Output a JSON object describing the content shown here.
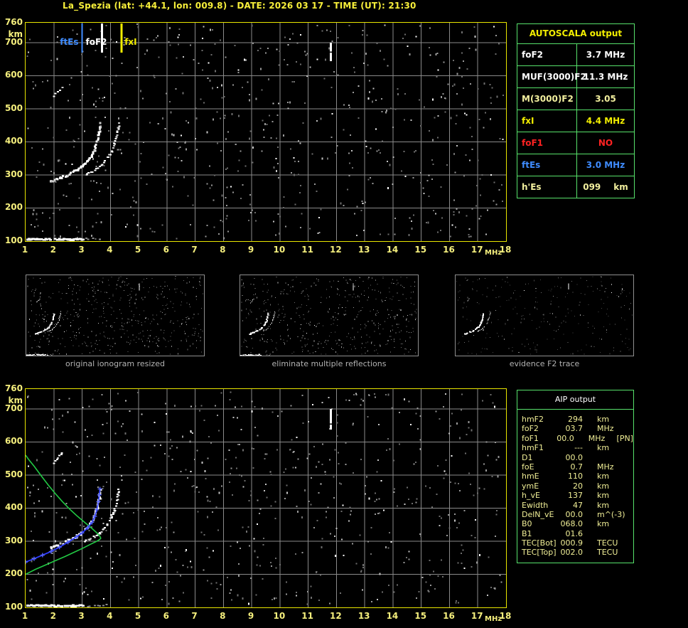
{
  "title": "La_Spezia (lat: +44.1, lon: 009.8) - DATE: 2026 03 17 - TIME (UT): 21:30",
  "colors": {
    "background": "#000000",
    "frame_yellow": "#e9e600",
    "axis_label_yellow": "#f5ef7d",
    "grid_gray": "#8a8a8a",
    "table_border_green": "#57e26b",
    "title_yellow": "#f7ef3a",
    "white": "#ffffff",
    "red": "#ff2222",
    "blue": "#3f8cff",
    "pale_yellow": "#f2ef9e",
    "bright_yellow": "#f2ee00",
    "profile_green": "#22c944",
    "profile_blue": "#2e3cff",
    "caption_gray": "#b3b3b3"
  },
  "autoscala_table": {
    "header": "AUTOSCALA output",
    "rows": [
      {
        "label": "foF2",
        "value": "3.7 MHz",
        "color": "#ffffff"
      },
      {
        "label": "MUF(3000)F2",
        "value": "11.3 MHz",
        "color": "#ffffff"
      },
      {
        "label": "M(3000)F2",
        "value": "3.05",
        "color": "#f2ef9e"
      },
      {
        "label": "fxI",
        "value": "4.4 MHz",
        "color": "#f2ee00"
      },
      {
        "label": "foF1",
        "value": "NO",
        "color": "#ff2222"
      },
      {
        "label": "ftEs",
        "value": "3.0 MHz",
        "color": "#3f8cff"
      },
      {
        "label": "h'Es",
        "value": "099",
        "value_unit": "km",
        "color": "#f2ef9e"
      }
    ]
  },
  "aip_table": {
    "header": "AIP output",
    "rows": [
      {
        "name": "hmF2",
        "value": "294",
        "unit": "km",
        "extra": ""
      },
      {
        "name": "foF2",
        "value": "03.7",
        "unit": "MHz",
        "extra": ""
      },
      {
        "name": "foF1",
        "value": "00.0",
        "unit": "MHz",
        "extra": "[PN]"
      },
      {
        "name": "hmF1",
        "value": "---",
        "unit": "km",
        "extra": ""
      },
      {
        "name": "D1",
        "value": "00.0",
        "unit": "",
        "extra": ""
      },
      {
        "name": "foE",
        "value": "0.7",
        "unit": "MHz",
        "extra": ""
      },
      {
        "name": "hmE",
        "value": "110",
        "unit": "km",
        "extra": ""
      },
      {
        "name": "ymE",
        "value": "20",
        "unit": "km",
        "extra": ""
      },
      {
        "name": "h_vE",
        "value": "137",
        "unit": "km",
        "extra": ""
      },
      {
        "name": "Ewidth",
        "value": "47",
        "unit": "km",
        "extra": ""
      },
      {
        "name": "DelN_vE",
        "value": "00.0",
        "unit": "m^(-3)",
        "extra": ""
      },
      {
        "name": "B0",
        "value": "068.0",
        "unit": "km",
        "extra": ""
      },
      {
        "name": "B1",
        "value": "01.6",
        "unit": "",
        "extra": ""
      },
      {
        "name": "TEC[Bot]",
        "value": "000.9",
        "unit": "TECU",
        "extra": ""
      },
      {
        "name": "TEC[Top]",
        "value": "002.0",
        "unit": "TECU",
        "extra": ""
      }
    ]
  },
  "thumbnails": [
    {
      "caption": "original ionogram resized"
    },
    {
      "caption": "eliminate multiple reflections"
    },
    {
      "caption": "evidence F2 trace"
    }
  ],
  "ionogram_traces": {
    "es_layer": {
      "km": 108,
      "f_start": 1.08,
      "f_end": 3.05,
      "faint_f_end": 3.85
    },
    "f2_o_mode_f_km": [
      [
        1.85,
        282
      ],
      [
        2.0,
        287
      ],
      [
        2.2,
        294
      ],
      [
        2.4,
        301
      ],
      [
        2.6,
        309
      ],
      [
        2.8,
        319
      ],
      [
        3.0,
        331
      ],
      [
        3.15,
        343
      ],
      [
        3.3,
        360
      ],
      [
        3.4,
        378
      ],
      [
        3.5,
        402
      ],
      [
        3.55,
        422
      ],
      [
        3.6,
        446
      ],
      [
        3.62,
        458
      ]
    ],
    "f2_x_mode_f_km": [
      [
        3.05,
        302
      ],
      [
        3.2,
        308
      ],
      [
        3.4,
        316
      ],
      [
        3.6,
        327
      ],
      [
        3.75,
        340
      ],
      [
        3.88,
        356
      ],
      [
        4.0,
        374
      ],
      [
        4.1,
        395
      ],
      [
        4.18,
        418
      ],
      [
        4.24,
        442
      ],
      [
        4.28,
        462
      ]
    ],
    "spread_segment_f_km": [
      [
        1.95,
        538
      ],
      [
        2.25,
        568
      ]
    ],
    "vertical_echo": {
      "f": 11.8,
      "km_start": 646,
      "km_end": 700
    }
  },
  "chart_data": [
    {
      "id": "ionogram-autoscaled",
      "type": "scatter",
      "title": "",
      "xlabel": "MHz",
      "ylabel": "km",
      "xlim": [
        1,
        18
      ],
      "ylim": [
        100,
        760
      ],
      "x_ticks": [
        1,
        2,
        3,
        4,
        5,
        6,
        7,
        8,
        9,
        10,
        11,
        12,
        13,
        14,
        15,
        16,
        17,
        18
      ],
      "y_ticks": [
        760,
        700,
        600,
        500,
        400,
        300,
        200,
        100
      ],
      "grid": true,
      "legend_position": "none",
      "scaled_markers": [
        {
          "label": "ftEs",
          "freq_mhz": 3.0,
          "color": "#3f8cff"
        },
        {
          "label": "foF2",
          "freq_mhz": 3.7,
          "color": "#ffffff"
        },
        {
          "label": "fxI",
          "freq_mhz": 4.4,
          "color": "#f2ee00"
        }
      ],
      "traces": "shared - see ionogram_traces"
    },
    {
      "id": "ionogram-profile-fit",
      "type": "scatter",
      "title": "",
      "xlabel": "MHz",
      "ylabel": "km",
      "xlim": [
        1,
        18
      ],
      "ylim": [
        100,
        760
      ],
      "x_ticks": [
        1,
        2,
        3,
        4,
        5,
        6,
        7,
        8,
        9,
        10,
        11,
        12,
        13,
        14,
        15,
        16,
        17,
        18
      ],
      "y_ticks": [
        760,
        700,
        600,
        500,
        400,
        300,
        200,
        100
      ],
      "grid": true,
      "legend_position": "none",
      "traces": "shared - see ionogram_traces",
      "series": [
        {
          "name": "electron-density-profile",
          "color": "#22c944",
          "points_f_km": [
            [
              1.0,
              200
            ],
            [
              1.35,
              215
            ],
            [
              1.7,
              228
            ],
            [
              2.05,
              241
            ],
            [
              2.4,
              254
            ],
            [
              2.75,
              268
            ],
            [
              3.05,
              280
            ],
            [
              3.3,
              291
            ],
            [
              3.5,
              299
            ],
            [
              3.62,
              305
            ],
            [
              3.66,
              309
            ],
            [
              3.62,
              316
            ],
            [
              3.5,
              327
            ],
            [
              3.3,
              342
            ],
            [
              3.05,
              360
            ],
            [
              2.8,
              378
            ],
            [
              2.55,
              398
            ],
            [
              2.3,
              420
            ],
            [
              2.05,
              444
            ],
            [
              1.8,
              470
            ],
            [
              1.55,
              498
            ],
            [
              1.3,
              527
            ],
            [
              1.1,
              548
            ],
            [
              1.0,
              560
            ]
          ]
        },
        {
          "name": "restored-virtual-height-trace",
          "color": "#2e3cff",
          "points_f_km": [
            [
              1.0,
              237
            ],
            [
              1.3,
              247
            ],
            [
              1.6,
              258
            ],
            [
              1.9,
              269
            ],
            [
              2.2,
              282
            ],
            [
              2.5,
              297
            ],
            [
              2.8,
              313
            ],
            [
              3.0,
              325
            ],
            [
              3.2,
              341
            ],
            [
              3.35,
              357
            ],
            [
              3.45,
              375
            ],
            [
              3.52,
              395
            ],
            [
              3.58,
              420
            ],
            [
              3.61,
              440
            ],
            [
              3.63,
              458
            ]
          ]
        }
      ]
    }
  ]
}
